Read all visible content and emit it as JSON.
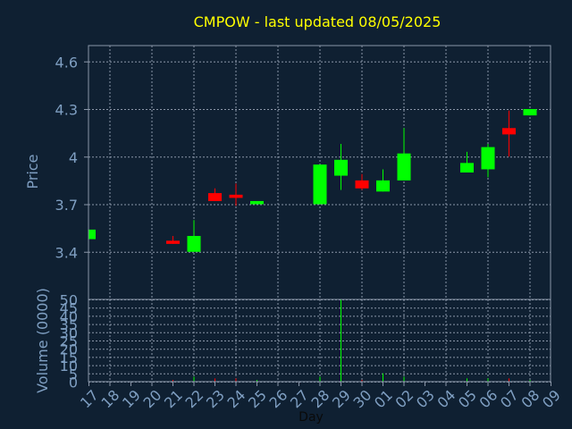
{
  "chart_data": {
    "type": "candlestick",
    "title": "CMPOW - last updated 08/05/2025",
    "colors": {
      "background": "#0f2032",
      "plot_bg": "#0f2032",
      "border": "#8a96a8",
      "grid": "#8a96a8",
      "title": "#ffff00",
      "axis_text": "#7f9fc2",
      "xlabel": "#0a0a0a",
      "up": "#00ff00",
      "down": "#ff0000"
    },
    "price": {
      "ylabel": "Price",
      "ylim": [
        3.1,
        4.7
      ],
      "ticks": [
        3.4,
        3.7,
        4,
        4.3,
        4.6
      ],
      "grid": true
    },
    "volume": {
      "ylabel": "Volume (0000)",
      "ylim": [
        0,
        50
      ],
      "ticks": [
        0,
        5,
        10,
        15,
        20,
        25,
        30,
        35,
        40,
        45,
        50
      ],
      "grid": true
    },
    "xlabel": "Day",
    "x_ticks": [
      "17",
      "18",
      "19",
      "20",
      "21",
      "22",
      "23",
      "24",
      "25",
      "26",
      "27",
      "28",
      "29",
      "30",
      "01",
      "02",
      "03",
      "04",
      "05",
      "06",
      "07",
      "08",
      "09"
    ],
    "candles": [
      {
        "day": "17",
        "open": 3.48,
        "high": 3.54,
        "low": 3.48,
        "close": 3.54,
        "volume": 0
      },
      {
        "day": "21",
        "open": 3.47,
        "high": 3.5,
        "low": 3.45,
        "close": 3.45,
        "volume": 1
      },
      {
        "day": "22",
        "open": 3.4,
        "high": 3.6,
        "low": 3.4,
        "close": 3.5,
        "volume": 3
      },
      {
        "day": "23",
        "open": 3.77,
        "high": 3.8,
        "low": 3.72,
        "close": 3.72,
        "volume": 2
      },
      {
        "day": "24",
        "open": 3.76,
        "high": 3.83,
        "low": 3.69,
        "close": 3.74,
        "volume": 2
      },
      {
        "day": "25",
        "open": 3.7,
        "high": 3.72,
        "low": 3.7,
        "close": 3.72,
        "volume": 1
      },
      {
        "day": "28",
        "open": 3.7,
        "high": 3.95,
        "low": 3.7,
        "close": 3.95,
        "volume": 3
      },
      {
        "day": "29",
        "open": 3.88,
        "high": 4.08,
        "low": 3.79,
        "close": 3.98,
        "volume": 50
      },
      {
        "day": "30",
        "open": 3.85,
        "high": 3.89,
        "low": 3.79,
        "close": 3.8,
        "volume": 1
      },
      {
        "day": "01",
        "open": 3.78,
        "high": 3.92,
        "low": 3.78,
        "close": 3.85,
        "volume": 5
      },
      {
        "day": "02",
        "open": 3.85,
        "high": 4.18,
        "low": 3.85,
        "close": 4.02,
        "volume": 3
      },
      {
        "day": "05",
        "open": 3.9,
        "high": 4.03,
        "low": 3.9,
        "close": 3.96,
        "volume": 2
      },
      {
        "day": "06",
        "open": 3.92,
        "high": 4.08,
        "low": 3.87,
        "close": 4.06,
        "volume": 2
      },
      {
        "day": "07",
        "open": 4.18,
        "high": 4.29,
        "low": 4.0,
        "close": 4.14,
        "volume": 2
      },
      {
        "day": "08",
        "open": 4.26,
        "high": 4.3,
        "low": 4.26,
        "close": 4.3,
        "volume": 1
      }
    ]
  }
}
